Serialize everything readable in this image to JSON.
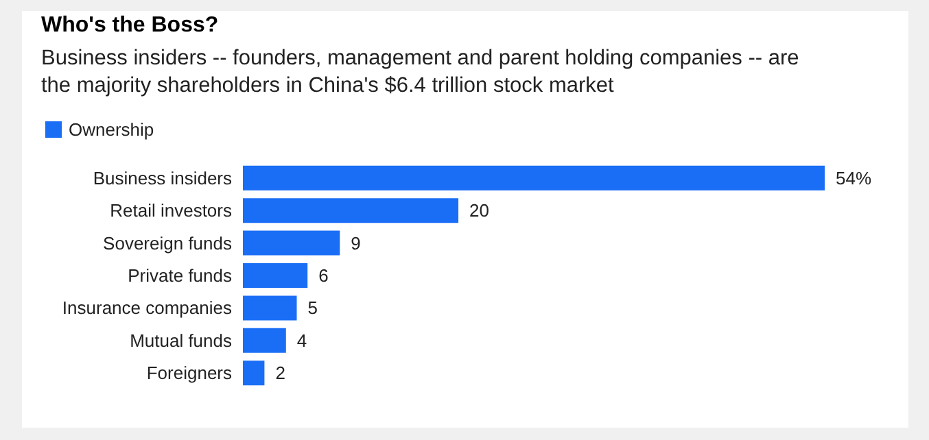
{
  "chart_data": {
    "type": "bar",
    "orientation": "horizontal",
    "title": "Who's the Boss?",
    "subtitle": "Business insiders -- founders, management and parent holding companies -- are the majority shareholders in China's $6.4 trillion stock market",
    "categories": [
      "Business insiders",
      "Retail investors",
      "Sovereign funds",
      "Private funds",
      "Insurance companies",
      "Mutual funds",
      "Foreigners"
    ],
    "series": [
      {
        "name": "Ownership",
        "color": "#1a6ef5",
        "values": [
          54,
          20,
          9,
          6,
          5,
          4,
          2
        ],
        "value_labels": [
          "54%",
          "20",
          "9",
          "6",
          "5",
          "4",
          "2"
        ]
      }
    ],
    "legend": "top left"
  }
}
